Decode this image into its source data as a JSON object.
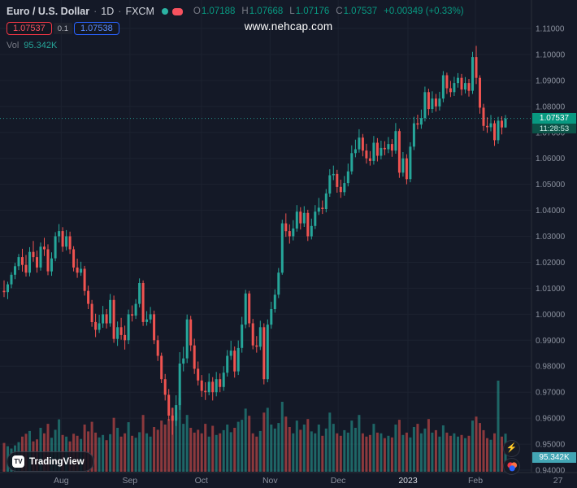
{
  "header": {
    "title": "Euro / U.S. Dollar",
    "dot": "·",
    "interval": "1D",
    "exchange": "FXCM",
    "o_label": "O",
    "h_label": "H",
    "l_label": "L",
    "c_label": "C",
    "ohlc": {
      "o": "1.07188",
      "h": "1.07668",
      "l": "1.07176",
      "c": "1.07537"
    },
    "change": "+0.00349 (+0.33%)",
    "sell": "1.07537",
    "spread": "0.1",
    "buy": "1.07538",
    "vol_label": "Vol",
    "vol_value": "95.342K"
  },
  "watermark": "www.nehcap.com",
  "logo": {
    "mark": "TV",
    "text": "TradingView"
  },
  "badges": {
    "price": "1.07537",
    "countdown": "11:28:53",
    "volume": "95.342K"
  },
  "colors": {
    "background": "#141927",
    "grid": "#1c2230",
    "border": "#2a2e39",
    "up": "#26a69a",
    "down": "#ef5350",
    "vol_up": "rgba(38,166,154,0.55)",
    "vol_down": "rgba(239,83,80,0.55)",
    "axis_text": "#8b919e",
    "axis_text_major": "#d8dbe2",
    "accent_green": "#089981",
    "sell_red": "#f23645",
    "buy_blue": "#2962ff",
    "vol_badge": "#43a6b5"
  },
  "chart_data": {
    "type": "candlestick",
    "title": "Euro / U.S. Dollar",
    "symbol": "EUR/USD",
    "timeframe": "1D",
    "exchange": "FXCM",
    "price_range": [
      0.94,
      1.11
    ],
    "grid": true,
    "y_ticks": [
      "1.11000",
      "1.10000",
      "1.09000",
      "1.08000",
      "1.07000",
      "1.06000",
      "1.05000",
      "1.04000",
      "1.03000",
      "1.02000",
      "1.01000",
      "1.00000",
      "0.99000",
      "0.98000",
      "0.97000",
      "0.96000",
      "0.95000",
      "0.94000"
    ],
    "x_ticks": [
      {
        "label": "Aug",
        "x": 0.106
      },
      {
        "label": "Sep",
        "x": 0.225
      },
      {
        "label": "Oct",
        "x": 0.349
      },
      {
        "label": "Nov",
        "x": 0.468
      },
      {
        "label": "Dec",
        "x": 0.586
      },
      {
        "label": "2023",
        "x": 0.707,
        "major": true
      },
      {
        "label": "Feb",
        "x": 0.824
      },
      {
        "label": "27",
        "x": 0.967
      }
    ],
    "last": {
      "open": 1.07188,
      "high": 1.07668,
      "low": 1.07176,
      "close": 1.07537,
      "change": "+0.00349",
      "change_pct": "+0.33%",
      "volume": "95.342K",
      "countdown": "11:28:53"
    },
    "candles": [
      [
        1.009,
        1.013,
        1.0066,
        1.0085,
        72
      ],
      [
        1.0085,
        1.0125,
        1.0058,
        1.0115,
        64
      ],
      [
        1.0115,
        1.0162,
        1.01,
        1.0152,
        58
      ],
      [
        1.0152,
        1.0198,
        1.0135,
        1.0185,
        66
      ],
      [
        1.0185,
        1.0232,
        1.017,
        1.022,
        74
      ],
      [
        1.022,
        1.0252,
        1.0164,
        1.019,
        88
      ],
      [
        1.019,
        1.0228,
        1.0145,
        1.016,
        95
      ],
      [
        1.016,
        1.0258,
        1.0146,
        1.024,
        102
      ],
      [
        1.024,
        1.0282,
        1.0202,
        1.022,
        76
      ],
      [
        1.022,
        1.0245,
        1.016,
        1.018,
        81
      ],
      [
        1.018,
        1.0276,
        1.0168,
        1.026,
        110
      ],
      [
        1.026,
        1.0294,
        1.0224,
        1.025,
        96
      ],
      [
        1.025,
        1.0269,
        1.015,
        1.0165,
        120
      ],
      [
        1.0165,
        1.0238,
        1.0148,
        1.0215,
        85
      ],
      [
        1.0215,
        1.0316,
        1.0204,
        1.03,
        105
      ],
      [
        1.03,
        1.0347,
        1.0276,
        1.032,
        131
      ],
      [
        1.032,
        1.0335,
        1.024,
        1.026,
        92
      ],
      [
        1.026,
        1.0324,
        1.0246,
        1.03,
        88
      ],
      [
        1.03,
        1.0318,
        1.0232,
        1.025,
        76
      ],
      [
        1.025,
        1.0262,
        1.0165,
        1.018,
        95
      ],
      [
        1.018,
        1.0214,
        1.014,
        1.016,
        90
      ],
      [
        1.016,
        1.0202,
        1.0148,
        1.0175,
        82
      ],
      [
        1.0175,
        1.0186,
        1.0072,
        1.009,
        118
      ],
      [
        1.009,
        1.011,
        1.002,
        1.004,
        101
      ],
      [
        1.004,
        1.0055,
        0.9952,
        0.997,
        125
      ],
      [
        0.997,
        1.0002,
        0.9912,
        0.994,
        98
      ],
      [
        0.994,
        0.9998,
        0.9928,
        0.9965,
        86
      ],
      [
        0.9965,
        1.0032,
        0.9948,
        1.0,
        92
      ],
      [
        1.0,
        1.002,
        0.9945,
        0.9965,
        79
      ],
      [
        0.9965,
        1.0078,
        0.9952,
        1.0055,
        94
      ],
      [
        1.0055,
        1.0072,
        0.989,
        0.9905,
        135
      ],
      [
        0.9905,
        0.9972,
        0.9878,
        0.995,
        110
      ],
      [
        0.995,
        0.9986,
        0.9902,
        0.992,
        88
      ],
      [
        0.992,
        0.9956,
        0.9864,
        0.99,
        96
      ],
      [
        0.99,
        1.0018,
        0.9885,
        1.0,
        124
      ],
      [
        1.0,
        1.0034,
        0.9972,
        0.9995,
        90
      ],
      [
        0.9995,
        1.0058,
        0.9982,
        1.004,
        85
      ],
      [
        1.004,
        1.0138,
        1.0026,
        1.012,
        99
      ],
      [
        1.012,
        1.013,
        0.9955,
        0.997,
        142
      ],
      [
        0.997,
        1.0012,
        0.9956,
        0.998,
        96
      ],
      [
        0.998,
        1.0028,
        0.9965,
        1.0,
        88
      ],
      [
        1.0,
        1.0014,
        0.9885,
        0.99,
        112
      ],
      [
        0.99,
        0.9918,
        0.982,
        0.984,
        105
      ],
      [
        0.984,
        0.9852,
        0.9735,
        0.975,
        128
      ],
      [
        0.975,
        0.977,
        0.9668,
        0.969,
        118
      ],
      [
        0.969,
        0.9712,
        0.959,
        0.961,
        132
      ],
      [
        0.961,
        0.964,
        0.9536,
        0.959,
        160
      ],
      [
        0.959,
        0.9688,
        0.957,
        0.965,
        148
      ],
      [
        0.965,
        0.9854,
        0.9632,
        0.981,
        185
      ],
      [
        0.981,
        0.9875,
        0.978,
        0.983,
        120
      ],
      [
        0.983,
        0.9999,
        0.9812,
        0.998,
        142
      ],
      [
        0.998,
        0.9994,
        0.9858,
        0.988,
        110
      ],
      [
        0.988,
        0.9906,
        0.977,
        0.979,
        98
      ],
      [
        0.979,
        0.9818,
        0.9726,
        0.9745,
        105
      ],
      [
        0.9745,
        0.9766,
        0.9682,
        0.9705,
        96
      ],
      [
        0.9705,
        0.9738,
        0.967,
        0.97,
        120
      ],
      [
        0.97,
        0.9772,
        0.9688,
        0.974,
        88
      ],
      [
        0.974,
        0.9758,
        0.9668,
        0.97,
        115
      ],
      [
        0.97,
        0.9778,
        0.9684,
        0.975,
        92
      ],
      [
        0.975,
        0.9772,
        0.97,
        0.972,
        96
      ],
      [
        0.972,
        0.98,
        0.9705,
        0.9775,
        104
      ],
      [
        0.9775,
        0.9862,
        0.976,
        0.984,
        118
      ],
      [
        0.984,
        0.9898,
        0.9824,
        0.986,
        99
      ],
      [
        0.986,
        0.9876,
        0.9756,
        0.978,
        110
      ],
      [
        0.978,
        0.9899,
        0.9766,
        0.987,
        125
      ],
      [
        0.987,
        0.999,
        0.9852,
        0.996,
        130
      ],
      [
        0.996,
        1.0094,
        0.9946,
        1.008,
        158
      ],
      [
        1.008,
        1.009,
        0.995,
        0.9965,
        140
      ],
      [
        0.9965,
        0.9982,
        0.9865,
        0.988,
        96
      ],
      [
        0.988,
        0.9916,
        0.9852,
        0.9875,
        88
      ],
      [
        0.9875,
        0.9975,
        0.9862,
        0.995,
        102
      ],
      [
        0.995,
        0.9965,
        0.973,
        0.975,
        148
      ],
      [
        0.975,
        0.998,
        0.9738,
        0.996,
        160
      ],
      [
        0.996,
        1.0048,
        0.9944,
        1.002,
        118
      ],
      [
        1.002,
        1.0096,
        1.0006,
        1.0075,
        108
      ],
      [
        1.0075,
        1.0178,
        1.0062,
        1.016,
        122
      ],
      [
        1.016,
        1.0364,
        1.0152,
        1.035,
        175
      ],
      [
        1.035,
        1.0388,
        1.0298,
        1.032,
        138
      ],
      [
        1.032,
        1.0346,
        1.0272,
        1.03,
        112
      ],
      [
        1.03,
        1.0362,
        1.0284,
        1.033,
        96
      ],
      [
        1.033,
        1.042,
        1.0318,
        1.0395,
        128
      ],
      [
        1.0395,
        1.0412,
        1.0326,
        1.035,
        105
      ],
      [
        1.035,
        1.0416,
        1.0336,
        1.039,
        118
      ],
      [
        1.039,
        1.0402,
        1.0282,
        1.03,
        132
      ],
      [
        1.03,
        1.0368,
        1.0288,
        1.034,
        101
      ],
      [
        1.034,
        1.042,
        1.0328,
        1.0395,
        96
      ],
      [
        1.0395,
        1.0448,
        1.0382,
        1.041,
        118
      ],
      [
        1.041,
        1.0438,
        1.0386,
        1.0405,
        90
      ],
      [
        1.0405,
        1.0482,
        1.0392,
        1.0465,
        108
      ],
      [
        1.0465,
        1.0558,
        1.0452,
        1.0535,
        148
      ],
      [
        1.0535,
        1.0572,
        1.0516,
        1.054,
        120
      ],
      [
        1.054,
        1.0556,
        1.0468,
        1.049,
        96
      ],
      [
        1.049,
        1.0518,
        1.0448,
        1.047,
        90
      ],
      [
        1.047,
        1.0532,
        1.0456,
        1.0505,
        104
      ],
      [
        1.0505,
        1.058,
        1.0492,
        1.055,
        98
      ],
      [
        1.055,
        1.065,
        1.0538,
        1.062,
        128
      ],
      [
        1.062,
        1.0672,
        1.0604,
        1.0635,
        110
      ],
      [
        1.0635,
        1.0712,
        1.0622,
        1.068,
        142
      ],
      [
        1.068,
        1.0694,
        1.0608,
        1.063,
        96
      ],
      [
        1.063,
        1.0656,
        1.058,
        1.06,
        88
      ],
      [
        1.06,
        1.0628,
        1.0572,
        1.059,
        92
      ],
      [
        1.059,
        1.0686,
        1.0576,
        1.066,
        120
      ],
      [
        1.066,
        1.0678,
        1.0588,
        1.061,
        98
      ],
      [
        1.061,
        1.0668,
        1.0596,
        1.064,
        96
      ],
      [
        1.064,
        1.0666,
        1.0612,
        1.0635,
        84
      ],
      [
        1.0635,
        1.0682,
        1.062,
        1.0655,
        90
      ],
      [
        1.0655,
        1.0674,
        1.0606,
        1.063,
        86
      ],
      [
        1.063,
        1.0736,
        1.0618,
        1.0705,
        118
      ],
      [
        1.0705,
        1.0714,
        1.0525,
        1.0545,
        130
      ],
      [
        1.0545,
        1.0624,
        1.053,
        1.06,
        92
      ],
      [
        1.06,
        1.0616,
        1.05,
        1.052,
        98
      ],
      [
        1.052,
        1.0662,
        1.0508,
        1.0645,
        86
      ],
      [
        1.0645,
        1.076,
        1.0632,
        1.0735,
        112
      ],
      [
        1.0735,
        1.0768,
        1.0712,
        1.073,
        120
      ],
      [
        1.073,
        1.0788,
        1.0714,
        1.0755,
        96
      ],
      [
        1.0755,
        1.0876,
        1.0742,
        1.0855,
        108
      ],
      [
        1.0855,
        1.0868,
        1.0766,
        1.079,
        132
      ],
      [
        1.079,
        1.0858,
        1.0775,
        1.083,
        98
      ],
      [
        1.083,
        1.0848,
        1.078,
        1.08,
        104
      ],
      [
        1.08,
        1.0856,
        1.0784,
        1.083,
        88
      ],
      [
        1.083,
        1.0936,
        1.0816,
        1.092,
        116
      ],
      [
        1.092,
        1.093,
        1.0848,
        1.087,
        98
      ],
      [
        1.087,
        1.0898,
        1.0836,
        1.0855,
        90
      ],
      [
        1.0855,
        1.0914,
        1.084,
        1.089,
        96
      ],
      [
        1.089,
        1.0928,
        1.0872,
        1.091,
        88
      ],
      [
        1.091,
        1.0925,
        1.0842,
        1.0865,
        92
      ],
      [
        1.0865,
        1.0913,
        1.085,
        1.089,
        84
      ],
      [
        1.089,
        1.0906,
        1.0838,
        1.086,
        90
      ],
      [
        1.086,
        1.101,
        1.0848,
        1.099,
        128
      ],
      [
        1.099,
        1.1033,
        1.0886,
        1.091,
        138
      ],
      [
        1.091,
        1.092,
        1.0772,
        1.0795,
        122
      ],
      [
        1.0795,
        1.081,
        1.0706,
        1.0725,
        104
      ],
      [
        1.0725,
        1.0758,
        1.0698,
        1.072,
        84
      ],
      [
        1.072,
        1.0767,
        1.0704,
        1.0735,
        80
      ],
      [
        1.0735,
        1.0746,
        1.0648,
        1.067,
        96
      ],
      [
        1.067,
        1.076,
        1.0656,
        1.0745,
        228
      ],
      [
        1.0745,
        1.0762,
        1.0692,
        1.0719,
        88
      ],
      [
        1.07188,
        1.07668,
        1.07176,
        1.07537,
        95.342
      ]
    ]
  }
}
